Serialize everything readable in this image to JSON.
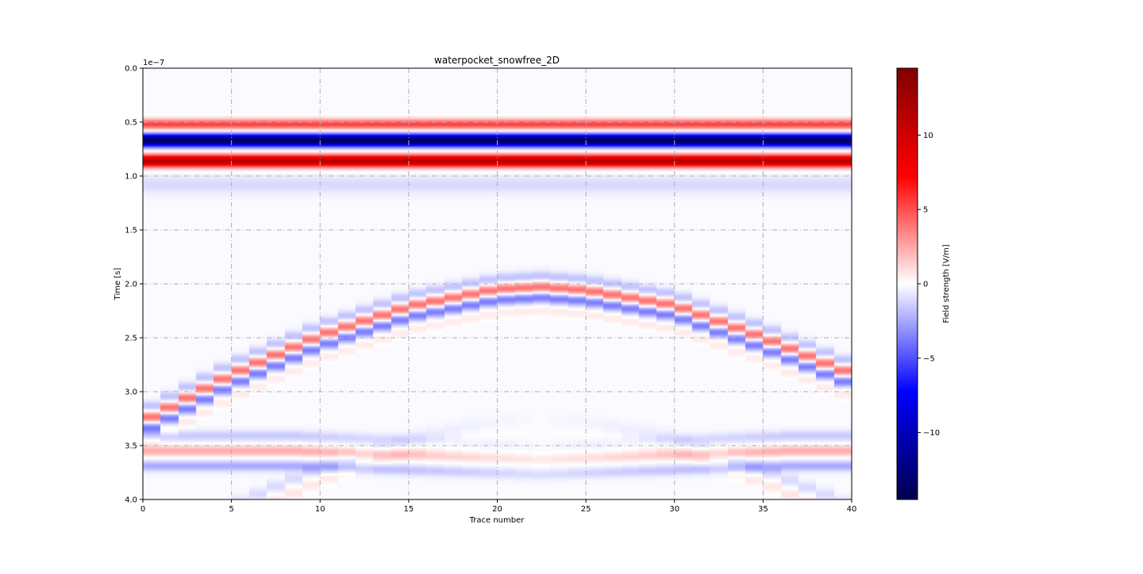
{
  "chart_data": {
    "type": "heatmap",
    "title": "waterpocket_snowfree_2D",
    "xlabel": "Trace number",
    "ylabel": "Time [s]",
    "y_offset_text": "1e−7",
    "xlim": [
      0,
      40
    ],
    "ylim": [
      4.0,
      0.0
    ],
    "y_scale_factor": 1e-07,
    "y_inverted": true,
    "xticks": [
      0,
      5,
      10,
      15,
      20,
      25,
      30,
      35,
      40
    ],
    "xtick_labels": [
      "0",
      "5",
      "10",
      "15",
      "20",
      "25",
      "30",
      "35",
      "40"
    ],
    "yticks": [
      0.0,
      0.5,
      1.0,
      1.5,
      2.0,
      2.5,
      3.0,
      3.5,
      4.0
    ],
    "ytick_labels": [
      "0.0",
      "0.5",
      "1.0",
      "1.5",
      "2.0",
      "2.5",
      "3.0",
      "3.5",
      "4.0"
    ],
    "grid": true,
    "grid_style": "dash-dot",
    "n_traces": 40,
    "colormap": "seismic",
    "colormap_stops": [
      "#00004c",
      "#0000ff",
      "#ffffff",
      "#ff0000",
      "#800000"
    ],
    "vlim": [
      -14.5,
      14.5
    ],
    "colorbar": {
      "label": "Field strength [V/m]",
      "ticks": [
        -10,
        -5,
        0,
        5,
        10
      ],
      "tick_labels": [
        "−10",
        "−5",
        "0",
        "5",
        "10"
      ]
    },
    "direct_wave": [
      {
        "time": 0.52,
        "amplitude": 5.5,
        "width": 0.07
      },
      {
        "time": 0.67,
        "amplitude": -13.5,
        "width": 0.08
      },
      {
        "time": 0.86,
        "amplitude": 11.5,
        "width": 0.08
      },
      {
        "time": 1.08,
        "amplitude": -0.9,
        "width": 0.12
      }
    ],
    "background_value": -0.15,
    "hyperbola": {
      "apex_trace": 22.5,
      "apex_time": 2.0,
      "peak_time_by_trace": [
        {
          "trace": 0,
          "time": 3.28
        },
        {
          "trace": 5,
          "time": 2.84
        },
        {
          "trace": 10,
          "time": 2.48
        },
        {
          "trace": 15,
          "time": 2.21
        },
        {
          "trace": 20,
          "time": 2.05
        },
        {
          "trace": 22.5,
          "time": 2.03
        },
        {
          "trace": 25,
          "time": 2.06
        },
        {
          "trace": 30,
          "time": 2.2
        },
        {
          "trace": 35,
          "time": 2.5
        },
        {
          "trace": 40,
          "time": 2.84
        }
      ],
      "lobes": [
        {
          "offset": -0.1,
          "amplitude": -1.6
        },
        {
          "offset": 0.0,
          "amplitude": 4.2
        },
        {
          "offset": 0.1,
          "amplitude": -3.6
        },
        {
          "offset": 0.22,
          "amplitude": 0.7
        }
      ]
    },
    "lower_reflector": {
      "time_center": 3.55,
      "amplitude": 2.5,
      "bottom_time_at_trace_20": 3.63
    }
  }
}
